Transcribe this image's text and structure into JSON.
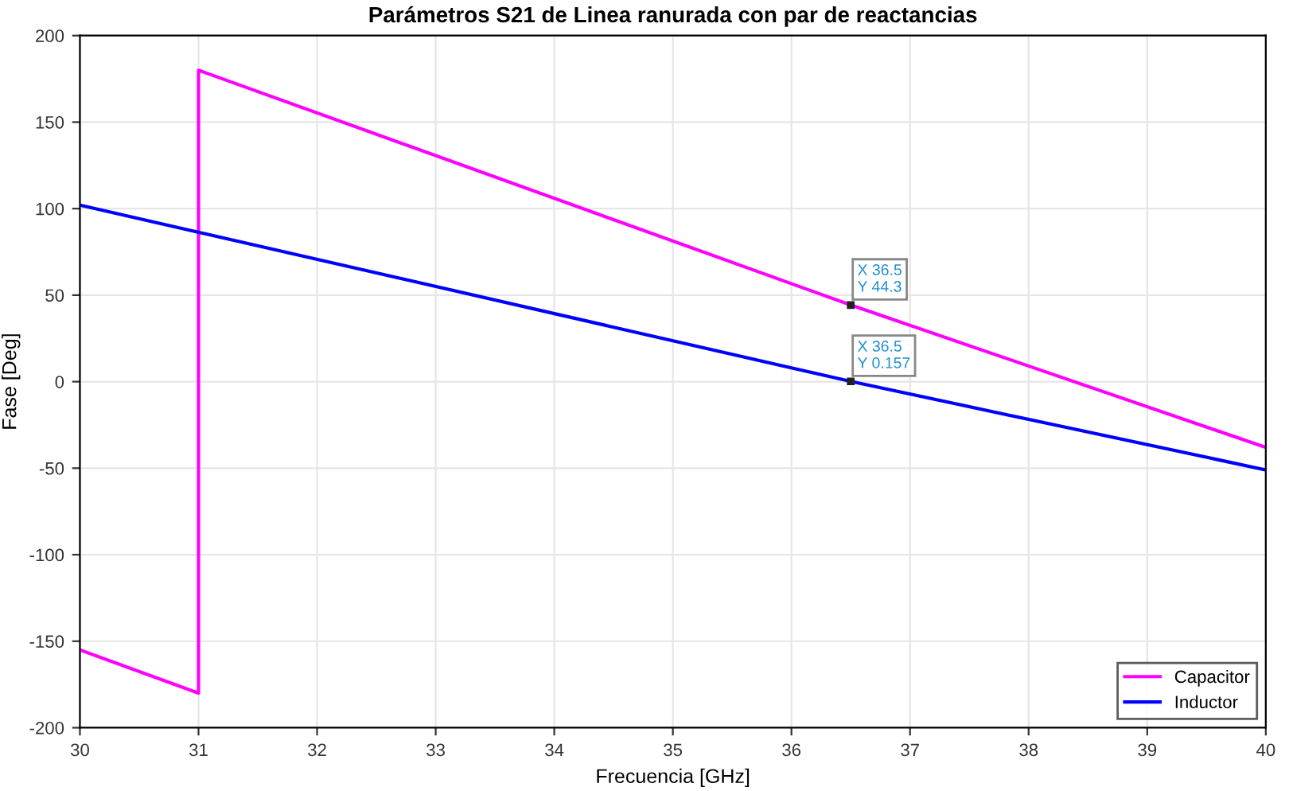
{
  "chart_data": {
    "type": "line",
    "title": "Parámetros S21 de Linea ranurada con par de reactancias",
    "xlabel": "Frecuencia [GHz]",
    "ylabel": "Fase [Deg]",
    "xlim": [
      30,
      40
    ],
    "ylim": [
      -200,
      200
    ],
    "xticks": [
      30,
      31,
      32,
      33,
      34,
      35,
      36,
      37,
      38,
      39,
      40
    ],
    "yticks": [
      -200,
      -150,
      -100,
      -50,
      0,
      50,
      100,
      150,
      200
    ],
    "grid": true,
    "legend": "bottom right",
    "line_style": "solid",
    "series": [
      {
        "name": "Capacitor",
        "color": "#ff00ff",
        "x": [
          30,
          31,
          31,
          36.5,
          40
        ],
        "values": [
          -155,
          -180,
          180,
          44.3,
          -38
        ]
      },
      {
        "name": "Inductor",
        "color": "#0000ff",
        "x": [
          30,
          36.5,
          40
        ],
        "values": [
          102,
          0.157,
          -51
        ]
      }
    ],
    "annotations": [
      {
        "text": "X 36.5\nY 44.3",
        "x": 36.5,
        "y": 44.3
      },
      {
        "text": "X 36.5\nY 0.157",
        "x": 36.5,
        "y": 0.157
      }
    ]
  }
}
